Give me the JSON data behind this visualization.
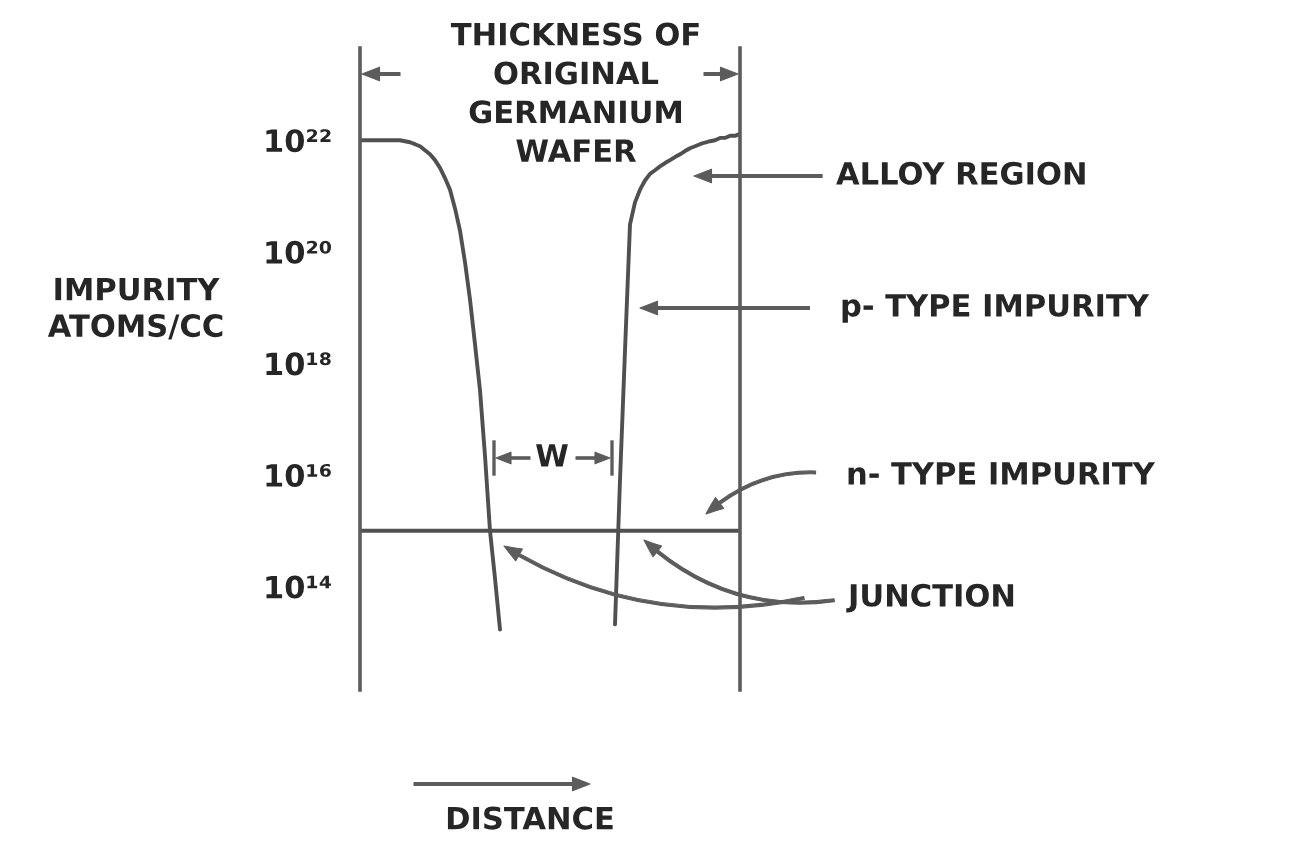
{
  "chart_data": {
    "type": "line",
    "categories": [
      null,
      null,
      null,
      null,
      null,
      null,
      null,
      null,
      null,
      null,
      null,
      null,
      null,
      null,
      null,
      null,
      null,
      null,
      null,
      null,
      null,
      null,
      null,
      null,
      null,
      null,
      null,
      null,
      null,
      null,
      null,
      null,
      null,
      null,
      null,
      null,
      null,
      null,
      null,
      null,
      null,
      null,
      null,
      null,
      null,
      null,
      null,
      null,
      null,
      null,
      null,
      null,
      null,
      null,
      null,
      null,
      null,
      null,
      null,
      null,
      null,
      null,
      null,
      null,
      null,
      null,
      null,
      null,
      null,
      null,
      null,
      null,
      null,
      null,
      null,
      null,
      null
    ],
    "series": [
      {
        "color": "#505050",
        "values": [
          1e+22,
          1e+22,
          1e+22,
          1e+22,
          1e+22,
          1e+22,
          1e+22,
          1e+22,
          1e+22,
          9.6e+21,
          9.2e+21,
          8.5e+21,
          7.8e+21,
          6.6e+21,
          5.6e+21,
          4.4e+21,
          3.2e+21,
          2.1e+21,
          1.3e+21,
          6e+20,
          2.4e+20,
          6.5e+19,
          1.4e+19,
          2.2e+18,
          3.3e+17,
          2.2e+16,
          1000000000000000.0,
          140000000000000.0,
          17000000000000.0,
          null,
          null,
          null,
          null,
          null,
          null,
          null,
          null,
          null,
          null,
          null,
          null,
          null,
          null,
          null,
          null,
          null,
          null,
          null,
          null,
          null,
          null,
          null,
          null,
          null,
          null,
          null,
          null,
          null,
          null,
          null,
          null,
          null,
          null,
          null,
          null,
          null,
          null,
          null,
          null,
          null,
          null,
          null,
          null,
          null,
          null,
          null,
          null
        ]
      },
      {
        "name": "p- TYPE IMPURITY",
        "color": "#505050",
        "values": [
          null,
          null,
          null,
          null,
          null,
          null,
          null,
          null,
          null,
          null,
          null,
          null,
          null,
          null,
          null,
          null,
          null,
          null,
          null,
          null,
          null,
          null,
          null,
          null,
          null,
          null,
          null,
          null,
          null,
          null,
          null,
          null,
          null,
          null,
          null,
          null,
          null,
          null,
          null,
          null,
          null,
          null,
          null,
          null,
          null,
          null,
          null,
          null,
          null,
          null,
          null,
          21000000000000.0,
          8100000000000000.0,
          1.7e+18,
          3.1e+20,
          7.7e+20,
          1.3e+21,
          1.9e+21,
          2.5e+21,
          2.9e+21,
          3.4e+21,
          3.9e+21,
          4.4e+21,
          5e+21,
          5.6e+21,
          6.4e+21,
          7.2e+21,
          7.8e+21,
          8.5e+21,
          9.1e+21,
          9.6e+21,
          1e+22,
          1.1e+22,
          1.1e+22,
          1.2e+22,
          1.2e+22,
          1.3e+22
        ]
      },
      {
        "name": "n- TYPE IMPURITY",
        "color": "#505050",
        "values": [
          1000000000000000.0,
          1000000000000000.0,
          1000000000000000.0,
          1000000000000000.0,
          1000000000000000.0,
          1000000000000000.0,
          1000000000000000.0,
          1000000000000000.0,
          1000000000000000.0,
          1000000000000000.0,
          1000000000000000.0,
          1000000000000000.0,
          1000000000000000.0,
          1000000000000000.0,
          1000000000000000.0,
          1000000000000000.0,
          1000000000000000.0,
          1000000000000000.0,
          1000000000000000.0,
          1000000000000000.0,
          1000000000000000.0,
          1000000000000000.0,
          1000000000000000.0,
          1000000000000000.0,
          1000000000000000.0,
          1000000000000000.0,
          1000000000000000.0,
          1000000000000000.0,
          1000000000000000.0,
          1000000000000000.0,
          1000000000000000.0,
          1000000000000000.0,
          1000000000000000.0,
          1000000000000000.0,
          1000000000000000.0,
          1000000000000000.0,
          1000000000000000.0,
          1000000000000000.0,
          1000000000000000.0,
          1000000000000000.0,
          1000000000000000.0,
          1000000000000000.0,
          1000000000000000.0,
          1000000000000000.0,
          1000000000000000.0,
          1000000000000000.0,
          1000000000000000.0,
          1000000000000000.0,
          1000000000000000.0,
          1000000000000000.0,
          1000000000000000.0,
          1000000000000000.0,
          1000000000000000.0,
          1000000000000000.0,
          1000000000000000.0,
          1000000000000000.0,
          1000000000000000.0,
          1000000000000000.0,
          1000000000000000.0,
          1000000000000000.0,
          1000000000000000.0,
          1000000000000000.0,
          1000000000000000.0,
          1000000000000000.0,
          1000000000000000.0,
          1000000000000000.0,
          1000000000000000.0,
          1000000000000000.0,
          1000000000000000.0,
          1000000000000000.0,
          1000000000000000.0,
          1000000000000000.0,
          1000000000000000.0,
          1000000000000000.0,
          1000000000000000.0,
          1000000000000000.0,
          1000000000000000.0
        ]
      }
    ],
    "log": true,
    "ylim": [
      1400000000000.0,
      4.5e+23
    ],
    "yticks": [
      {
        "value": 100000000000000.0,
        "label": "10¹⁴"
      },
      {
        "value": 1e+16,
        "label": "10¹⁶"
      },
      {
        "value": 1e+18,
        "label": "10¹⁸"
      },
      {
        "value": 1e+20,
        "label": "10²⁰"
      },
      {
        "value": 1e+22,
        "label": "10²²"
      }
    ],
    "ylabel": "IMPURITY\nATOMS/CC",
    "xlabel": "DISTANCE",
    "annotations": [
      "THICKNESS OF\nORIGINAL\nGERMANIUM\nWAFER",
      "ALLOY REGION",
      "JUNCTION",
      "W"
    ]
  }
}
